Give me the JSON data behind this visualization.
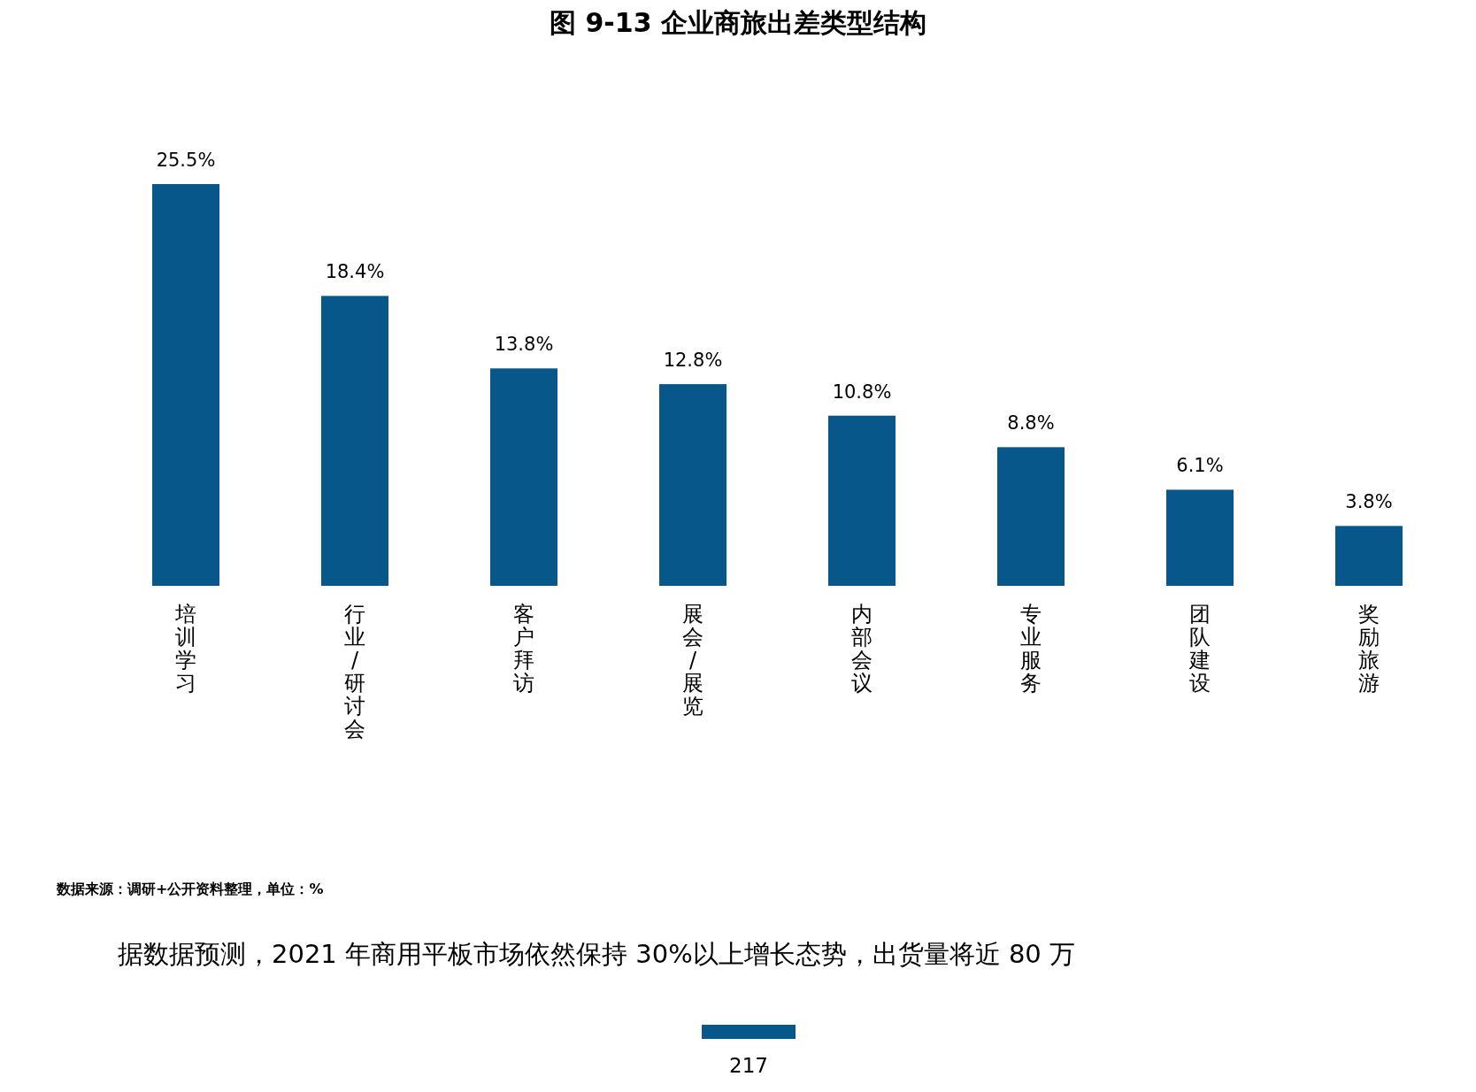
{
  "chart_data": {
    "type": "bar",
    "title": "图 9-13 企业商旅出差类型结构",
    "categories": [
      "培训学习",
      "行业/研讨会",
      "客户拜访",
      "展会/展览",
      "内部会议",
      "专业服务",
      "团队建设",
      "奖励旅游"
    ],
    "values": [
      25.5,
      18.4,
      13.8,
      12.8,
      10.8,
      8.8,
      6.1,
      3.8
    ],
    "value_labels": [
      "25.5%",
      "18.4%",
      "13.8%",
      "12.8%",
      "10.8%",
      "8.8%",
      "6.1%",
      "3.8%"
    ],
    "color": "#08578a",
    "annotations": [
      "数据来源：调研+公开资料整理，单位：%",
      "据数据预测，2021 年商用平板市场依然保持 30%以上增长态势，出货量将近 80 万",
      "217"
    ]
  }
}
